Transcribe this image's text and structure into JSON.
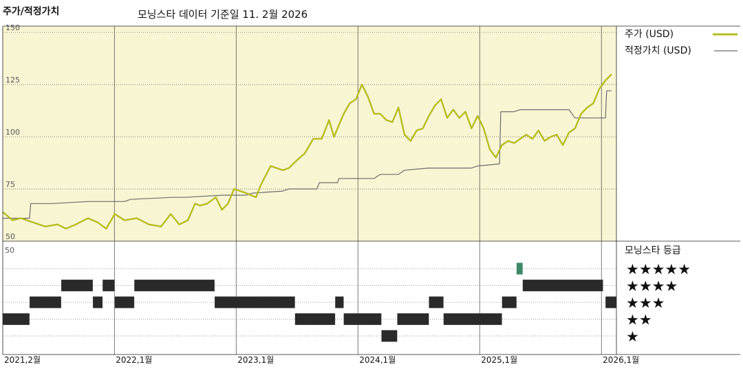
{
  "header": {
    "title": "주가/적정가치",
    "subtitle": "모닝스타 데이터 기준일 11. 2월 2026"
  },
  "colors": {
    "price": "#b5bc1f",
    "fair": "#6b6b6b",
    "plot_bg": "#f8f5d3",
    "highlight": "#3f8a66"
  },
  "chart_data": [
    {
      "type": "line",
      "title": "주가/적정가치",
      "x_ticks": [
        "2021,2월",
        "2022,1월",
        "2023,1월",
        "2024,1월",
        "2025,1월",
        "2026,1월"
      ],
      "x_tick_pos": [
        0,
        0.9167,
        1.9167,
        2.9167,
        3.9167,
        4.9167
      ],
      "x_range": [
        0,
        5.04
      ],
      "y_ticks": [
        50,
        75,
        100,
        125,
        150
      ],
      "ylim": [
        50,
        153
      ],
      "legend_position": "top-right",
      "series": [
        {
          "name": "주가 (USD)",
          "color": "#b5bc1f",
          "x": [
            0,
            0.08,
            0.15,
            0.25,
            0.35,
            0.45,
            0.52,
            0.6,
            0.7,
            0.78,
            0.85,
            0.92,
            1.0,
            1.1,
            1.2,
            1.3,
            1.38,
            1.45,
            1.52,
            1.58,
            1.62,
            1.68,
            1.75,
            1.8,
            1.85,
            1.9,
            2.0,
            2.08,
            2.12,
            2.2,
            2.3,
            2.35,
            2.42,
            2.48,
            2.55,
            2.62,
            2.68,
            2.72,
            2.8,
            2.85,
            2.9,
            2.95,
            3.0,
            3.05,
            3.1,
            3.15,
            3.2,
            3.25,
            3.3,
            3.35,
            3.4,
            3.45,
            3.5,
            3.55,
            3.6,
            3.65,
            3.7,
            3.75,
            3.8,
            3.85,
            3.9,
            3.95,
            4.0,
            4.05,
            4.1,
            4.15,
            4.2,
            4.25,
            4.3,
            4.35,
            4.4,
            4.45,
            4.5,
            4.55,
            4.6,
            4.65,
            4.7,
            4.75,
            4.8,
            4.85,
            4.9,
            4.95,
            5.0
          ],
          "values": [
            64,
            60,
            61,
            59,
            57,
            58,
            56,
            58,
            61,
            59,
            56,
            63,
            60,
            61,
            58,
            57,
            63,
            58,
            60,
            68,
            67,
            68,
            71,
            65,
            68,
            75,
            73,
            71,
            77,
            86,
            84,
            85,
            89,
            92,
            99,
            99,
            108,
            100,
            111,
            116,
            118,
            125,
            119,
            111,
            111,
            108,
            107,
            114,
            101,
            98,
            103,
            104,
            110,
            115,
            118,
            109,
            113,
            109,
            112,
            104,
            110,
            104,
            94,
            90,
            96,
            98,
            97,
            99,
            101,
            99,
            103,
            98,
            100,
            101,
            96,
            102,
            104,
            111,
            114,
            116,
            123,
            127,
            130
          ]
        },
        {
          "name": "적정가치 (USD)",
          "color": "#6b6b6b",
          "x": [
            0,
            0.22,
            0.23,
            0.4,
            0.7,
            1.0,
            1.05,
            1.4,
            1.5,
            1.8,
            2.0,
            2.05,
            2.3,
            2.35,
            2.58,
            2.6,
            2.75,
            2.76,
            3.05,
            3.1,
            3.25,
            3.3,
            3.5,
            3.85,
            3.9,
            4.08,
            4.09,
            4.2,
            4.25,
            4.65,
            4.7,
            4.9,
            4.95,
            4.96,
            5.0
          ],
          "values": [
            61,
            61,
            68,
            68,
            69,
            69,
            70,
            71,
            71,
            72,
            72,
            73,
            74,
            75,
            75,
            78,
            78,
            80,
            80,
            82,
            82,
            84,
            85,
            85,
            86,
            87,
            112,
            112,
            113,
            113,
            109,
            109,
            109,
            122,
            122
          ]
        }
      ]
    },
    {
      "type": "rating",
      "title": "모닝스타 등급",
      "y_label": "50",
      "rating_labels": [
        "★★★★★",
        "★★★★",
        "★★★",
        "★★",
        "★"
      ],
      "segments": [
        {
          "rating": 2,
          "start": 0.0,
          "end": 0.22
        },
        {
          "rating": 3,
          "start": 0.22,
          "end": 0.48
        },
        {
          "rating": 4,
          "start": 0.48,
          "end": 0.74
        },
        {
          "rating": 3,
          "start": 0.74,
          "end": 0.82
        },
        {
          "rating": 4,
          "start": 0.82,
          "end": 0.92
        },
        {
          "rating": 3,
          "start": 0.92,
          "end": 1.08
        },
        {
          "rating": 4,
          "start": 1.08,
          "end": 1.74
        },
        {
          "rating": 3,
          "start": 1.74,
          "end": 2.4
        },
        {
          "rating": 2,
          "start": 2.4,
          "end": 2.73
        },
        {
          "rating": 3,
          "start": 2.73,
          "end": 2.8
        },
        {
          "rating": 2,
          "start": 2.8,
          "end": 3.11
        },
        {
          "rating": 1,
          "start": 3.11,
          "end": 3.24
        },
        {
          "rating": 2,
          "start": 3.24,
          "end": 3.5
        },
        {
          "rating": 3,
          "start": 3.5,
          "end": 3.62
        },
        {
          "rating": 2,
          "start": 3.62,
          "end": 4.1
        },
        {
          "rating": 3,
          "start": 4.1,
          "end": 4.22
        },
        {
          "rating": 5,
          "start": 4.22,
          "end": 4.27
        },
        {
          "rating": 4,
          "start": 4.27,
          "end": 4.93
        },
        {
          "rating": 3,
          "start": 4.95,
          "end": 5.04
        }
      ]
    }
  ]
}
